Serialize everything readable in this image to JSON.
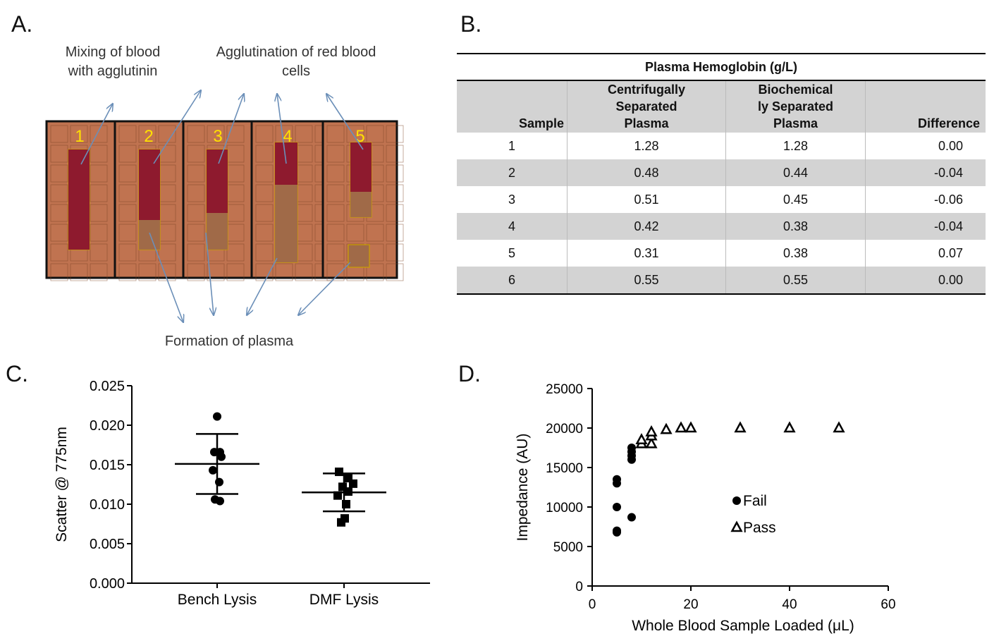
{
  "panels": {
    "a": {
      "letter": "A."
    },
    "b": {
      "letter": "B."
    },
    "c": {
      "letter": "C."
    },
    "d": {
      "letter": "D."
    }
  },
  "panel_a": {
    "label_mixing": "Mixing of blood\nwith agglutinin",
    "label_agglutination": "Agglutination of red blood\ncells",
    "label_formation": "Formation of plasma",
    "frame_numbers": [
      "1",
      "2",
      "3",
      "4",
      "5"
    ],
    "colors": {
      "device": "#c07350",
      "blood": "#8e1a2e",
      "plasma": "#a06a48",
      "number": "#ffe100",
      "arrow": "#6b8fb8"
    }
  },
  "table_b": {
    "title": "Plasma Hemoglobin (g/L)",
    "headers": [
      "Sample",
      "Centrifugally\nSeparated\nPlasma",
      "Biochemical\nly Separated\nPlasma",
      "Difference"
    ],
    "rows": [
      [
        "1",
        "1.28",
        "1.28",
        "0.00"
      ],
      [
        "2",
        "0.48",
        "0.44",
        "-0.04"
      ],
      [
        "3",
        "0.51",
        "0.45",
        "-0.06"
      ],
      [
        "4",
        "0.42",
        "0.38",
        "-0.04"
      ],
      [
        "5",
        "0.31",
        "0.38",
        "0.07"
      ],
      [
        "6",
        "0.55",
        "0.55",
        "0.00"
      ]
    ]
  },
  "chart_data": [
    {
      "type": "scatter",
      "ylabel": "Scatter @ 775nm",
      "ylim": [
        0,
        0.025
      ],
      "yticks": [
        "0.000",
        "0.005",
        "0.010",
        "0.015",
        "0.020",
        "0.025"
      ],
      "categories": [
        "Bench Lysis",
        "DMF Lysis"
      ],
      "series": [
        {
          "category": "Bench Lysis",
          "marker": "circle",
          "points": [
            [
              0,
              0.0211
            ],
            [
              -0.04,
              0.0166
            ],
            [
              0.04,
              0.0166
            ],
            [
              0.06,
              0.016
            ],
            [
              -0.06,
              0.0143
            ],
            [
              0.03,
              0.0128
            ],
            [
              -0.03,
              0.0106
            ],
            [
              0.04,
              0.0104
            ]
          ],
          "mean": 0.0151,
          "sd_low": 0.0113,
          "sd_high": 0.0189
        },
        {
          "category": "DMF Lysis",
          "marker": "square",
          "points": [
            [
              -0.07,
              0.0141
            ],
            [
              0.06,
              0.0133
            ],
            [
              0.13,
              0.0126
            ],
            [
              -0.02,
              0.0122
            ],
            [
              0.06,
              0.0116
            ],
            [
              -0.09,
              0.0111
            ],
            [
              0.03,
              0.01
            ],
            [
              0.01,
              0.0082
            ],
            [
              -0.04,
              0.0077
            ]
          ],
          "mean": 0.0115,
          "sd_low": 0.0091,
          "sd_high": 0.0139
        }
      ]
    },
    {
      "type": "scatter",
      "xlabel": "Whole Blood Sample Loaded (μL)",
      "ylabel": "Impedance (AU)",
      "xlim": [
        0,
        60
      ],
      "ylim": [
        0,
        25000
      ],
      "xticks": [
        "0",
        "20",
        "40",
        "60"
      ],
      "yticks": [
        "0",
        "5000",
        "10000",
        "15000",
        "20000",
        "25000"
      ],
      "series": [
        {
          "name": "Fail",
          "marker": "circle",
          "points": [
            [
              5,
              13500
            ],
            [
              5,
              13000
            ],
            [
              5,
              10000
            ],
            [
              5,
              7000
            ],
            [
              5,
              6800
            ],
            [
              8,
              17500
            ],
            [
              8,
              17000
            ],
            [
              8,
              16500
            ],
            [
              8,
              16000
            ],
            [
              8,
              8700
            ]
          ]
        },
        {
          "name": "Pass",
          "marker": "triangle",
          "points": [
            [
              10,
              18000
            ],
            [
              10,
              18500
            ],
            [
              12,
              18000
            ],
            [
              12,
              19000
            ],
            [
              12,
              19500
            ],
            [
              15,
              19800
            ],
            [
              18,
              20000
            ],
            [
              20,
              20000
            ],
            [
              30,
              20000
            ],
            [
              40,
              20000
            ],
            [
              50,
              20000
            ]
          ]
        }
      ]
    }
  ]
}
